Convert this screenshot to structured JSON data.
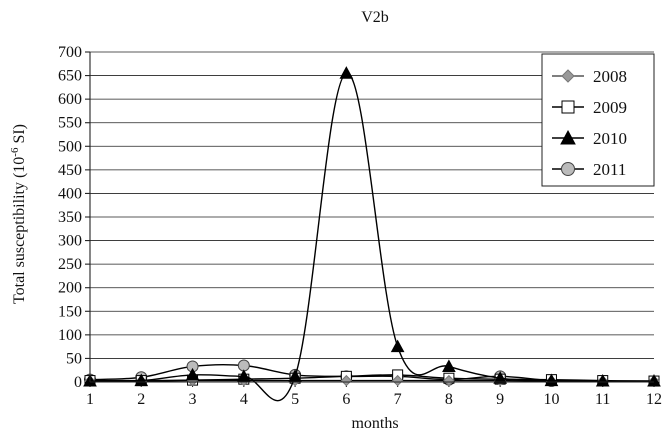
{
  "chart_data": {
    "type": "line",
    "title": "V2b",
    "xlabel": "months",
    "ylabel_main": "Total susceptibility (10",
    "ylabel_sup": "-6",
    "ylabel_tail": " SI)",
    "x": [
      1,
      2,
      3,
      4,
      5,
      6,
      7,
      8,
      9,
      10,
      11,
      12
    ],
    "x_tick_labels": [
      "1",
      "2",
      "3",
      "4",
      "5",
      "6",
      "7",
      "8",
      "9",
      "10",
      "11",
      "12"
    ],
    "y_ticks": [
      0,
      50,
      100,
      150,
      200,
      250,
      300,
      350,
      400,
      450,
      500,
      550,
      600,
      650,
      700
    ],
    "y_tick_labels": [
      "0",
      "50",
      "100",
      "150",
      "200",
      "250",
      "300",
      "350",
      "400",
      "450",
      "500",
      "550",
      "600",
      "650",
      "700"
    ],
    "ylim": [
      0,
      700
    ],
    "xlim": [
      1,
      12
    ],
    "grid": "horizontal",
    "legend_position": "top-right",
    "series": [
      {
        "name": "2008",
        "marker": "diamond",
        "color": "#999999",
        "line_color": "#555555",
        "x": [
          1,
          2,
          3,
          4,
          5,
          6,
          7,
          8,
          9,
          10,
          11,
          12
        ],
        "values": [
          2,
          2,
          3,
          3,
          3,
          3,
          3,
          3,
          3,
          2,
          2,
          2
        ]
      },
      {
        "name": "2009",
        "marker": "square",
        "color": "#ffffff",
        "line_color": "#000000",
        "x": [
          1,
          2,
          3,
          4,
          5,
          6,
          7,
          8,
          9,
          10,
          11,
          12
        ],
        "values": [
          3,
          3,
          4,
          6,
          8,
          12,
          15,
          8,
          6,
          5,
          3,
          2
        ]
      },
      {
        "name": "2010",
        "marker": "triangle",
        "color": "#000000",
        "line_color": "#000000",
        "x": [
          1,
          2,
          3,
          4,
          5,
          6,
          7,
          8,
          9,
          10,
          11,
          12
        ],
        "values": [
          2,
          3,
          15,
          12,
          12,
          655,
          75,
          33,
          8,
          3,
          2,
          2
        ]
      },
      {
        "name": "2011",
        "marker": "circle",
        "color": "#bbbbbb",
        "line_color": "#000000",
        "x": [
          1,
          2,
          3,
          4,
          5,
          6,
          7,
          8,
          9,
          10
        ],
        "values": [
          5,
          10,
          33,
          35,
          15,
          12,
          12,
          5,
          12,
          2
        ]
      }
    ]
  }
}
